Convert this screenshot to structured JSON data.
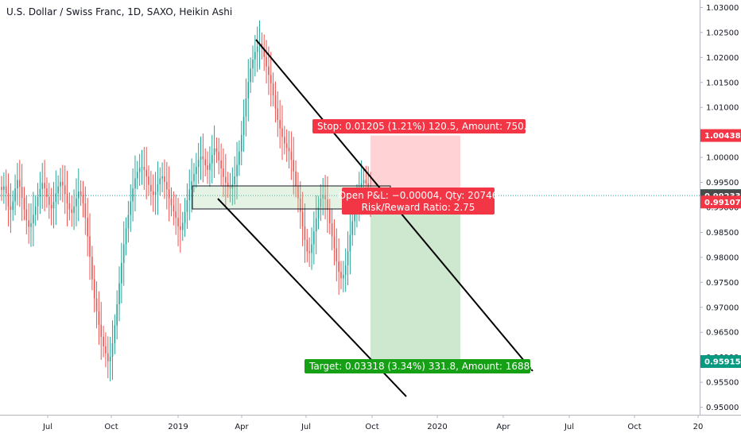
{
  "chart_data": {
    "type": "candlestick",
    "title": "U.S. Dollar / Swiss Franc, 1D, SAXO, Heikin Ashi",
    "xlabel": "",
    "ylabel": "",
    "x_ticks": [
      "Jul",
      "Oct",
      "2019",
      "Apr",
      "Jul",
      "Oct",
      "2020",
      "Apr",
      "Jul",
      "Oct",
      "20"
    ],
    "y_ticks": [
      "0.95000",
      "0.95500",
      "0.96000",
      "0.96500",
      "0.97000",
      "0.97500",
      "0.98000",
      "0.98500",
      "0.99000",
      "0.99500",
      "1.00000",
      "1.00500",
      "1.01000",
      "1.01500",
      "1.02000",
      "1.02500",
      "1.03000"
    ],
    "ylim": [
      0.9485,
      1.0315
    ],
    "grid": false,
    "price_labels": [
      {
        "text": "1.00438",
        "value": 1.00438,
        "color": "#f23645"
      },
      {
        "text": "0.99237",
        "value": 0.99237,
        "color": "#26a69a"
      },
      {
        "text": "0.99233",
        "value": 0.99233,
        "color": "#4a4a4a"
      },
      {
        "text": "0.99107",
        "value": 0.99107,
        "color": "#f23645"
      },
      {
        "text": "0.95915",
        "value": 0.95915,
        "color": "#089981"
      }
    ],
    "current_price": 0.99237,
    "position": {
      "type": "short",
      "entry": 0.99233,
      "stop": 1.00438,
      "target": 0.95915,
      "stop_label": "Stop: 0.01205 (1.21%) 120.5, Amount: 750.01",
      "pnl_label": "Open P&L: −0.00004, Qty: 20746",
      "ratio_label": "Risk/Reward Ratio: 2.75",
      "target_label": "Target: 0.03318 (3.34%) 331.8, Amount: 1688.35",
      "stop_zone_color": "#ffcdd2",
      "target_zone_color": "#c8e6c9",
      "stop_label_color": "#f23645",
      "ratio_label_color": "#f23645",
      "target_label_color": "#16a016"
    },
    "series": [
      {
        "color_up": "#26a69a",
        "color_down": "#ef5350",
        "values": [
          0.9935,
          0.9942,
          0.9928,
          0.9902,
          0.9895,
          0.9912,
          0.9938,
          0.9955,
          0.9941,
          0.9919,
          0.9896,
          0.9874,
          0.9861,
          0.9868,
          0.9885,
          0.9902,
          0.9921,
          0.9937,
          0.9949,
          0.9938,
          0.9921,
          0.9905,
          0.9898,
          0.9911,
          0.9928,
          0.9942,
          0.9951,
          0.9944,
          0.9927,
          0.9908,
          0.9896,
          0.9889,
          0.9902,
          0.9918,
          0.9932,
          0.9925,
          0.9908,
          0.9879,
          0.9842,
          0.9801,
          0.9756,
          0.9718,
          0.9692,
          0.9665,
          0.9641,
          0.9622,
          0.9608,
          0.9592,
          0.9601,
          0.9628,
          0.9664,
          0.9706,
          0.9748,
          0.9789,
          0.9826,
          0.9858,
          0.9885,
          0.9912,
          0.9938,
          0.9958,
          0.9971,
          0.9979,
          0.9981,
          0.9975,
          0.9962,
          0.9945,
          0.9932,
          0.9925,
          0.9931,
          0.9946,
          0.9958,
          0.9962,
          0.9951,
          0.9936,
          0.9918,
          0.9904,
          0.9892,
          0.9879,
          0.9862,
          0.9855,
          0.9869,
          0.9891,
          0.9914,
          0.9936,
          0.9952,
          0.9967,
          0.9981,
          0.9995,
          1.0002,
          0.9996,
          0.9984,
          0.9975,
          0.9988,
          1.0005,
          1.0018,
          1.0011,
          0.9994,
          0.9978,
          0.9961,
          0.9949,
          0.9941,
          0.9938,
          0.9946,
          0.9962,
          0.9985,
          1.0012,
          1.0045,
          1.0082,
          1.0118,
          1.0151,
          1.0178,
          1.0196,
          1.0211,
          1.0222,
          1.0228,
          1.0218,
          1.0201,
          1.0182,
          1.0165,
          1.0148,
          1.0124,
          1.0098,
          1.0075,
          1.0058,
          1.0041,
          1.0028,
          1.0019,
          1.0012,
          0.9995,
          0.9972,
          0.9942,
          0.9918,
          0.9891,
          0.9862,
          0.9835,
          0.9812,
          0.9809,
          0.9826,
          0.9852,
          0.9878,
          0.9901,
          0.9918,
          0.9925,
          0.9916,
          0.9895,
          0.9868,
          0.9842,
          0.9818,
          0.9792,
          0.9771,
          0.9758,
          0.9765,
          0.9784,
          0.9812,
          0.9845,
          0.9872,
          0.9894,
          0.9912,
          0.9931,
          0.9948,
          0.9955,
          0.9948,
          0.9931,
          0.9921
        ]
      }
    ]
  }
}
